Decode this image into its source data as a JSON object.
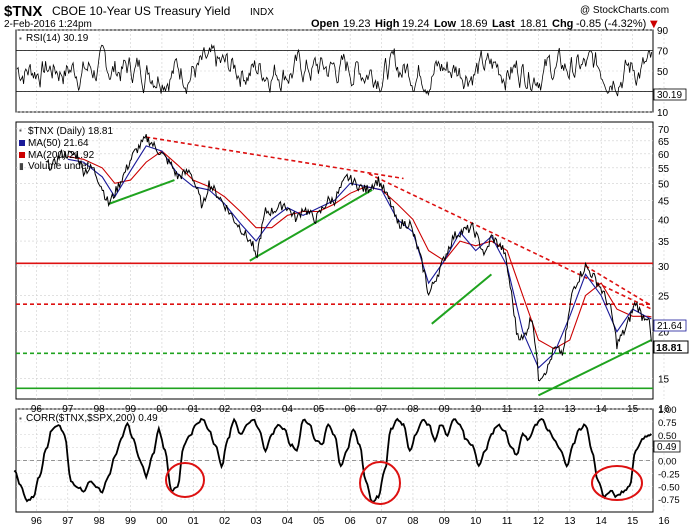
{
  "header": {
    "symbol": "$TNX",
    "name": "CBOE 10-Year US Treasury Yield",
    "exchange": "INDX",
    "date": "2-Feb-2016 1:24pm",
    "watermark": "@ StockCharts.com",
    "open_label": "Open",
    "open": "19.23",
    "high_label": "High",
    "high": "19.24",
    "low_label": "Low",
    "low": "18.69",
    "last_label": "Last",
    "last": "18.81",
    "chg_label": "Chg",
    "chg": "-0.85 (-4.32%)",
    "chg_arrow": "▼"
  },
  "colors": {
    "price": "#000000",
    "ma50": "#1a1a99",
    "ma200": "#cc0000",
    "support_green": "#1fa31f",
    "resistance_red": "#dd1111",
    "grid": "#cfcfcf",
    "annotation_circle": "#dd1111"
  },
  "chart_data": [
    {
      "type": "line",
      "panel": "RSI",
      "title": "RSI(14) 30.19",
      "last_value": "30.19",
      "ylim": [
        10,
        90
      ],
      "y_ticks": [
        "90",
        "70",
        "50",
        "30",
        "10"
      ],
      "reference_lines": [
        70,
        30
      ]
    },
    {
      "type": "line",
      "panel": "Price",
      "title": "$TNX (Daily) 18.81",
      "y_scale": "log",
      "ylim": [
        13.2,
        73
      ],
      "y_ticks": [
        "70",
        "65",
        "60",
        "55",
        "50",
        "45",
        "40",
        "35",
        "30",
        "25",
        "20",
        "15"
      ],
      "x_ticks": [
        "96",
        "97",
        "98",
        "99",
        "00",
        "01",
        "02",
        "03",
        "04",
        "05",
        "06",
        "07",
        "08",
        "09",
        "10",
        "11",
        "12",
        "13",
        "14",
        "15",
        "16"
      ],
      "legend": [
        {
          "label": "$TNX (Daily) 18.81",
          "color": "#000000"
        },
        {
          "label": "MA(50) 21.64",
          "color": "#1a1a99"
        },
        {
          "label": "MA(200) 21.92",
          "color": "#cc0000"
        },
        {
          "label": "Volume undef",
          "color": "#000000"
        }
      ],
      "price_labels": [
        "21.64",
        "18.81"
      ],
      "series": [
        {
          "name": "$TNX (Daily)",
          "x": [
            1996.8,
            1997.0,
            1997.3,
            1997.8,
            1998.0,
            1998.3,
            1998.6,
            1998.8,
            1999.0,
            1999.3,
            1999.6,
            2000.0,
            2000.1,
            2000.4,
            2000.8,
            2001.0,
            2001.4,
            2001.8,
            2002.0,
            2002.4,
            2002.8,
            2003.0,
            2003.4,
            2003.5,
            2003.8,
            2004.0,
            2004.4,
            2004.8,
            2005.0,
            2005.4,
            2005.8,
            2006.0,
            2006.4,
            2006.8,
            2007.0,
            2007.4,
            2007.8,
            2008.0,
            2008.4,
            2008.9,
            2009.0,
            2009.4,
            2009.8,
            2010.0,
            2010.4,
            2010.8,
            2011.0,
            2011.4,
            2011.8,
            2012.0,
            2012.3,
            2012.5,
            2012.8,
            2013.0,
            2013.3,
            2013.6,
            2013.8,
            2014.0,
            2014.4,
            2014.8,
            2015.0,
            2015.3,
            2015.6,
            2015.8,
            2016.0,
            2016.1
          ],
          "values": [
            56.5,
            55.5,
            60,
            59.5,
            54,
            55,
            48.5,
            44,
            47,
            53,
            60,
            66,
            65,
            61,
            56,
            52,
            54,
            43,
            50,
            45,
            40,
            38,
            34,
            31,
            42,
            42,
            44,
            40,
            43,
            40,
            45,
            45,
            52,
            49,
            48,
            51,
            44,
            39,
            39,
            28,
            25,
            30,
            36,
            37,
            38,
            32,
            36,
            33,
            20,
            19,
            22,
            15,
            16,
            18,
            17.5,
            26,
            28,
            30,
            27,
            23,
            18.5,
            20.5,
            24,
            22,
            22,
            18.8
          ]
        },
        {
          "name": "MA(50)",
          "x": [
            1997.5,
            1998.0,
            1998.6,
            1999.0,
            1999.5,
            2000.0,
            2000.5,
            2001.0,
            2001.5,
            2002.0,
            2002.5,
            2003.0,
            2003.5,
            2004.0,
            2004.5,
            2005.0,
            2005.5,
            2006.0,
            2006.5,
            2007.0,
            2007.5,
            2008.0,
            2008.5,
            2009.0,
            2009.5,
            2010.0,
            2010.5,
            2011.0,
            2011.5,
            2012.0,
            2012.5,
            2013.0,
            2013.5,
            2014.0,
            2014.5,
            2015.0,
            2015.5,
            2016.0,
            2016.1
          ],
          "values": [
            58,
            57,
            52,
            46,
            54,
            63,
            61,
            53,
            49,
            48,
            44,
            39,
            35,
            40,
            43,
            41,
            43,
            45,
            50,
            49,
            48,
            40,
            37,
            27,
            31,
            37,
            33,
            36,
            30,
            20,
            16,
            17.5,
            22,
            28.5,
            25,
            20,
            23,
            21.8,
            21.64
          ]
        },
        {
          "name": "MA(200)",
          "x": [
            1997.5,
            1998.0,
            1998.6,
            1999.0,
            1999.5,
            2000.0,
            2000.5,
            2001.0,
            2001.5,
            2002.0,
            2002.5,
            2003.0,
            2003.5,
            2004.0,
            2004.5,
            2005.0,
            2005.5,
            2006.0,
            2006.5,
            2007.0,
            2007.5,
            2008.0,
            2008.5,
            2009.0,
            2009.5,
            2010.0,
            2010.5,
            2011.0,
            2011.5,
            2012.0,
            2012.5,
            2013.0,
            2013.5,
            2014.0,
            2014.5,
            2015.0,
            2015.5,
            2016.0,
            2016.1
          ],
          "values": [
            59,
            58,
            55,
            50,
            51,
            57,
            61,
            56,
            51,
            49,
            46,
            42,
            38,
            38,
            41,
            42,
            42,
            44,
            47,
            49,
            48,
            44,
            40,
            33,
            31,
            35,
            34,
            35,
            33,
            25,
            19,
            18,
            19,
            25,
            27,
            23,
            22,
            22,
            21.92
          ]
        }
      ],
      "trendlines": [
        {
          "style": "green",
          "x": [
            1998.8,
            2000.9
          ],
          "y": [
            44,
            51
          ]
        },
        {
          "style": "green",
          "x": [
            2003.3,
            2007.2
          ],
          "y": [
            31,
            48
          ]
        },
        {
          "style": "green",
          "x": [
            2009.1,
            2011.0
          ],
          "y": [
            21,
            28.5
          ]
        },
        {
          "style": "green",
          "x": [
            2012.5,
            2016.1
          ],
          "y": [
            13.5,
            19
          ]
        },
        {
          "style": "red_dashed",
          "x": [
            2000.0,
            2008.2
          ],
          "y": [
            66.5,
            51.5
          ]
        },
        {
          "style": "red_dashed",
          "x": [
            2007.1,
            2016.1
          ],
          "y": [
            53,
            23
          ]
        },
        {
          "style": "red_dashed",
          "x": [
            2014.0,
            2016.1
          ],
          "y": [
            30,
            23.5
          ]
        }
      ],
      "horizontal_lines": [
        {
          "style": "red_solid",
          "y": 30.5
        },
        {
          "style": "red_dashed",
          "y": 23.7
        },
        {
          "style": "green_dashed",
          "y": 17.5
        },
        {
          "style": "green_solid",
          "y": 14.1
        }
      ]
    },
    {
      "type": "line",
      "panel": "CORR",
      "title": "CORR($TNX,$SPX,200) 0.49",
      "last_value": "0.49",
      "ylim": [
        -1.0,
        1.0
      ],
      "y_ticks": [
        "1.00",
        "0.75",
        "0.50",
        "0.25",
        "0.00",
        "-0.25",
        "-0.50",
        "-0.75"
      ],
      "series": [
        {
          "name": "CORR",
          "x": [
            1995.8,
            1996.0,
            1996.2,
            1996.4,
            1996.6,
            1996.8,
            1997.0,
            1997.2,
            1997.4,
            1997.6,
            1997.8,
            1998.0,
            1998.2,
            1998.4,
            1998.6,
            1998.8,
            1999.0,
            1999.2,
            1999.4,
            1999.6,
            1999.8,
            2000.0,
            2000.2,
            2000.4,
            2000.6,
            2000.8,
            2001.0,
            2001.2,
            2001.4,
            2001.6,
            2001.8,
            2002.0,
            2002.2,
            2002.4,
            2002.6,
            2002.8,
            2003.0,
            2003.2,
            2003.4,
            2003.6,
            2003.8,
            2004.0,
            2004.2,
            2004.4,
            2004.6,
            2004.8,
            2005.0,
            2005.2,
            2005.4,
            2005.6,
            2005.8,
            2006.0,
            2006.2,
            2006.4,
            2006.6,
            2006.8,
            2007.0,
            2007.2,
            2007.4,
            2007.6,
            2007.8,
            2008.0,
            2008.2,
            2008.4,
            2008.6,
            2008.8,
            2009.0,
            2009.2,
            2009.4,
            2009.6,
            2009.8,
            2010.0,
            2010.2,
            2010.4,
            2010.6,
            2010.8,
            2011.0,
            2011.2,
            2011.4,
            2011.6,
            2011.8,
            2012.0,
            2012.2,
            2012.4,
            2012.6,
            2012.8,
            2013.0,
            2013.2,
            2013.4,
            2013.6,
            2013.8,
            2014.0,
            2014.2,
            2014.4,
            2014.6,
            2014.8,
            2015.0,
            2015.2,
            2015.4,
            2015.6,
            2015.8,
            2016.0,
            2016.1
          ],
          "values": [
            -0.2,
            -0.5,
            -0.8,
            -0.7,
            -0.3,
            0.2,
            0.6,
            0.7,
            0.5,
            -0.4,
            -0.5,
            -0.6,
            -0.4,
            -0.5,
            -0.6,
            -0.3,
            0.1,
            0.4,
            0.7,
            0.4,
            0.0,
            -0.3,
            0.1,
            0.6,
            0.2,
            -0.6,
            -0.5,
            0.3,
            0.5,
            0.7,
            0.8,
            0.6,
            0.3,
            -0.1,
            0.4,
            0.8,
            0.5,
            0.7,
            0.8,
            0.6,
            0.2,
            0.5,
            0.7,
            0.6,
            0.3,
            0.2,
            0.8,
            0.7,
            0.4,
            0.3,
            0.7,
            0.5,
            -0.1,
            0.2,
            0.6,
            0.3,
            -0.4,
            -0.8,
            -0.7,
            -0.2,
            0.6,
            0.8,
            0.7,
            0.2,
            0.5,
            0.8,
            0.7,
            0.4,
            0.7,
            0.5,
            0.8,
            0.7,
            0.4,
            0.3,
            -0.1,
            0.2,
            0.5,
            0.7,
            0.6,
            0.3,
            0.1,
            0.5,
            0.4,
            0.7,
            0.8,
            0.6,
            0.4,
            0.2,
            -0.1,
            0.3,
            0.6,
            0.7,
            0.2,
            -0.4,
            -0.7,
            -0.6,
            -0.7,
            -0.6,
            -0.5,
            0.2,
            0.4,
            0.5,
            0.49
          ]
        }
      ]
    }
  ]
}
